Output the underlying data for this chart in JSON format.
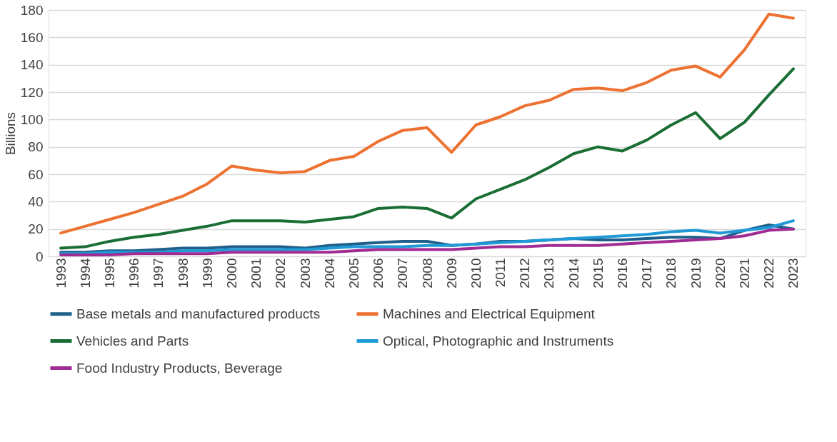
{
  "chart_data": {
    "type": "line",
    "ylabel": "Billions",
    "categories": [
      "1993",
      "1994",
      "1995",
      "1996",
      "1997",
      "1998",
      "1999",
      "2000",
      "2001",
      "2002",
      "2003",
      "2004",
      "2005",
      "2006",
      "2007",
      "2008",
      "2009",
      "2010",
      "2011",
      "2012",
      "2013",
      "2014",
      "2015",
      "2016",
      "2017",
      "2018",
      "2019",
      "2020",
      "2021",
      "2022",
      "2023"
    ],
    "series": [
      {
        "name": "Base metals and manufactured products",
        "color": "#1f5f8b",
        "values": [
          3,
          3,
          4,
          4,
          5,
          6,
          6,
          7,
          7,
          7,
          6,
          8,
          9,
          10,
          11,
          11,
          8,
          9,
          11,
          11,
          12,
          13,
          12,
          12,
          13,
          14,
          14,
          13,
          19,
          23,
          20
        ]
      },
      {
        "name": "Machines and Electrical Equipment",
        "color": "#ed7130",
        "values": [
          17,
          22,
          27,
          32,
          38,
          44,
          53,
          66,
          63,
          61,
          62,
          70,
          73,
          84,
          92,
          94,
          76,
          96,
          102,
          110,
          114,
          122,
          123,
          121,
          127,
          136,
          139,
          131,
          151,
          177,
          174
        ]
      },
      {
        "name": "Vehicles and Parts",
        "color": "#1a6e35",
        "values": [
          6,
          7,
          11,
          14,
          16,
          19,
          22,
          26,
          26,
          26,
          25,
          27,
          29,
          35,
          36,
          35,
          28,
          42,
          49,
          56,
          65,
          75,
          80,
          77,
          85,
          96,
          105,
          86,
          98,
          118,
          137
        ]
      },
      {
        "name": "Optical, Photographic and Instruments",
        "color": "#1f9ad6",
        "values": [
          2,
          2,
          3,
          3,
          3,
          4,
          4,
          5,
          5,
          5,
          5,
          6,
          7,
          7,
          7,
          8,
          8,
          9,
          10,
          11,
          12,
          13,
          14,
          15,
          16,
          18,
          19,
          17,
          19,
          21,
          26
        ]
      },
      {
        "name": "Food Industry Products, Beverage",
        "color": "#a02b93",
        "values": [
          1,
          1,
          1,
          2,
          2,
          2,
          2,
          3,
          3,
          3,
          3,
          3,
          4,
          5,
          5,
          5,
          5,
          6,
          7,
          7,
          8,
          8,
          8,
          9,
          10,
          11,
          12,
          13,
          15,
          19,
          20
        ]
      }
    ],
    "ylim": [
      0,
      180
    ],
    "yticks": [
      0,
      20,
      40,
      60,
      80,
      100,
      120,
      140,
      160,
      180
    ],
    "grid": "y",
    "legend": "bottom",
    "marker": "none",
    "line_style": "solid"
  }
}
